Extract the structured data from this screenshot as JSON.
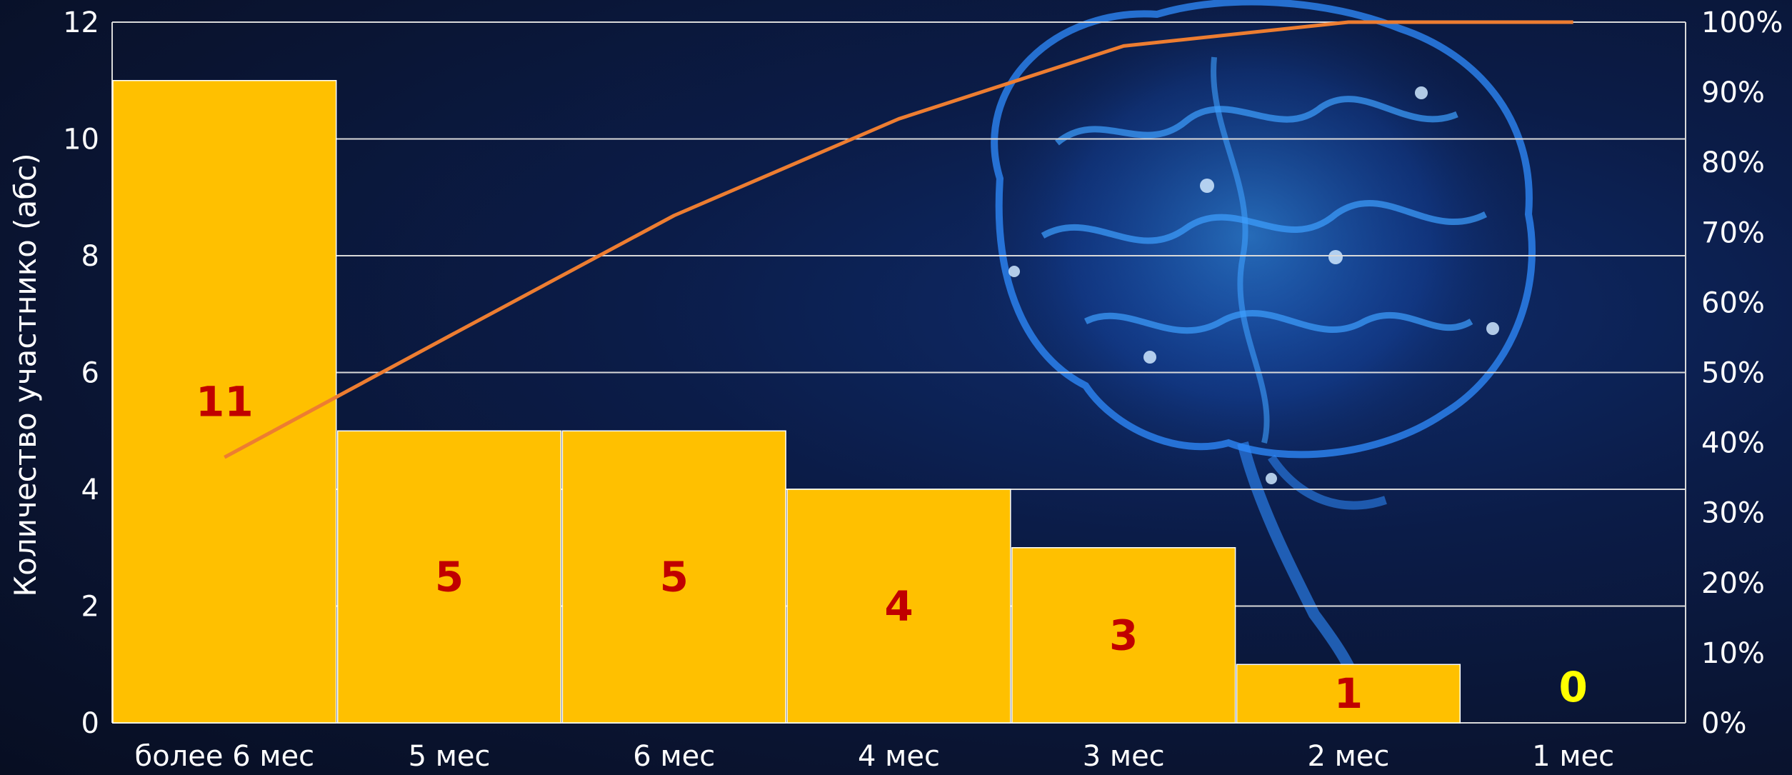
{
  "chart_data": {
    "type": "bar",
    "categories": [
      "более 6 мес",
      "5 мес",
      "6 мес",
      "4 мес",
      "3 мес",
      "2 мес",
      "1 мес"
    ],
    "values": [
      11,
      5,
      5,
      4,
      3,
      1,
      0
    ],
    "bar_labels": [
      "11",
      "5",
      "5",
      "4",
      "3",
      "1",
      "0"
    ],
    "ylabel": "Количество участнико (абс)",
    "ylim": [
      0,
      12
    ],
    "y_ticks": [
      "0",
      "2",
      "4",
      "6",
      "8",
      "10",
      "12"
    ],
    "y2lim": [
      0,
      100
    ],
    "y2_ticks": [
      "0%",
      "10%",
      "20%",
      "30%",
      "40%",
      "50%",
      "60%",
      "70%",
      "80%",
      "90%",
      "100%"
    ],
    "cumulative_series": {
      "type": "line",
      "values_percent": [
        37.9,
        55.2,
        72.4,
        86.2,
        96.6,
        100,
        100
      ]
    },
    "grid": true,
    "colors": {
      "bar": "#ffc000",
      "line": "#ed7d31",
      "bar_label": "#c00000",
      "zero_label": "#ffff00",
      "background": "#0a1838",
      "text": "#ffffff"
    }
  }
}
